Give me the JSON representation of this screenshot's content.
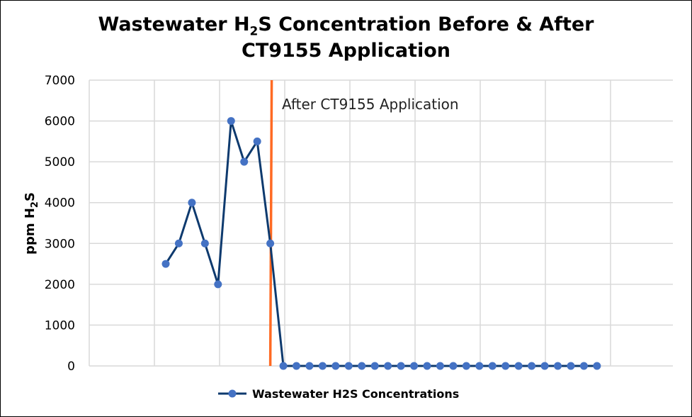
{
  "chart_data": {
    "type": "line",
    "title_line1_pre": "Wastewater H",
    "title_sub": "2",
    "title_line1_post": "S Concentration Before & After",
    "title_line2": "CT9155 Application",
    "ylabel_pre": "ppm H",
    "ylabel_sub": "2",
    "ylabel_post": "S",
    "ylim": [
      0,
      7000
    ],
    "yticks": [
      "0",
      "1000",
      "2000",
      "3000",
      "4000",
      "5000",
      "6000",
      "7000"
    ],
    "grid": true,
    "legend_position": "bottom",
    "series": [
      {
        "name": "Wastewater H2S Concentrations",
        "color": "#4472C4",
        "line_color": "#0E3A6E",
        "values": [
          2500,
          3000,
          4000,
          3000,
          2000,
          6000,
          5000,
          5500,
          3000,
          0,
          0,
          0,
          0,
          0,
          0,
          0,
          0,
          0,
          0,
          0,
          0,
          0,
          0,
          0,
          0,
          0,
          0,
          0,
          0,
          0,
          0,
          0,
          0,
          0
        ]
      }
    ],
    "annotation": {
      "text": "After CT9155 Application",
      "marker_color": "#FF6A23",
      "after_index": 8
    }
  }
}
